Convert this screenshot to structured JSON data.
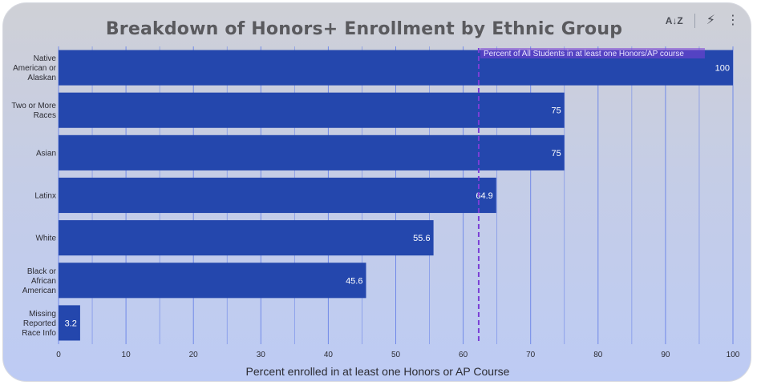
{
  "card": {
    "title": "Breakdown of Honors+ Enrollment by Ethnic Group",
    "toolbar": {
      "sort_icon": "sort-az-icon",
      "insights_icon": "lightning-icon",
      "menu_icon": "more-vert-icon"
    }
  },
  "chart_data": {
    "type": "bar",
    "orientation": "horizontal",
    "title": "Breakdown of Honors+ Enrollment by Ethnic Group",
    "xlabel": "Percent enrolled in at least one Honors or AP Course",
    "ylabel": "",
    "xlim": [
      0,
      100
    ],
    "xticks": [
      0,
      10,
      20,
      30,
      40,
      50,
      60,
      70,
      80,
      90,
      100
    ],
    "grid": true,
    "categories": [
      [
        "Native",
        "American or",
        "Alaskan"
      ],
      [
        "Two or More",
        "Races"
      ],
      [
        "Asian"
      ],
      [
        "Latinx"
      ],
      [
        "White"
      ],
      [
        "Black or",
        "African",
        "American"
      ],
      [
        "Missing",
        "Reported",
        "Race Info"
      ]
    ],
    "values": [
      100,
      75,
      75,
      64.9,
      55.6,
      45.6,
      3.2
    ],
    "value_labels": [
      "100",
      "75",
      "75",
      "64.9",
      "55.6",
      "45.6",
      "3.2"
    ],
    "bar_color": "#2447ad",
    "grid_color": "#6d86e8",
    "reference_line": {
      "value": 62.3,
      "label": "Percent of All Students in at least one Honors/AP course",
      "color": "#7b3fd6"
    }
  }
}
